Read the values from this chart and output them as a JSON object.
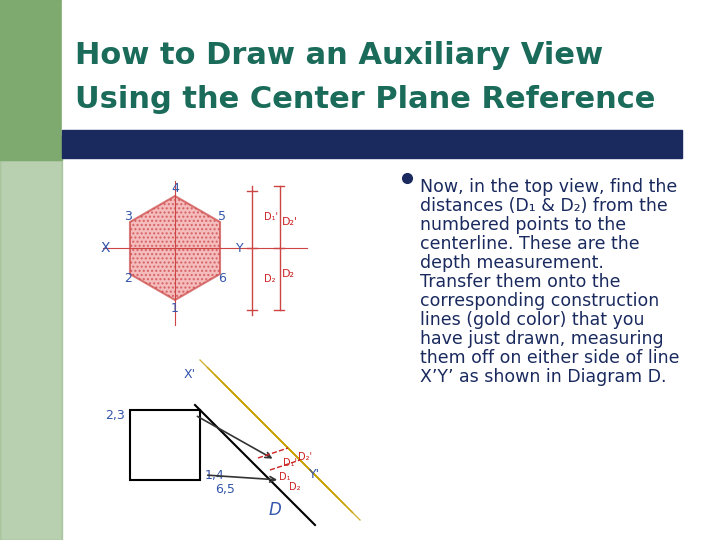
{
  "title_line1": "How to Draw an Auxiliary View",
  "title_line2": "Using the Center Plane Reference",
  "title_color": "#1a6b5a",
  "title_fontsize": 22,
  "bg_color": "#ffffff",
  "slide_bg": "#e8e8e8",
  "green_bar_color": "#7faa6f",
  "navy_bar_color": "#1a2a5e",
  "bullet_text": [
    "Now, in the top view, find the",
    "distances (D₁ & D₂) from the",
    "numbered points to the",
    "centerline. These are the",
    "depth measurement.",
    "Transfer them onto the",
    "corresponding construction",
    "lines (gold color) that you",
    "have just drawn, measuring",
    "them off on either side of line",
    "X’Y’ as shown in Diagram D."
  ],
  "bullet_color": "#1a2a5e",
  "bullet_fontsize": 12.5,
  "hex_fill": "#f0a0a0",
  "hex_stroke": "#cc4444",
  "label_color_blue": "#3355aa",
  "label_color_red": "#cc2222",
  "gold_color": "#c8a000",
  "diagram_line_color": "#333333"
}
